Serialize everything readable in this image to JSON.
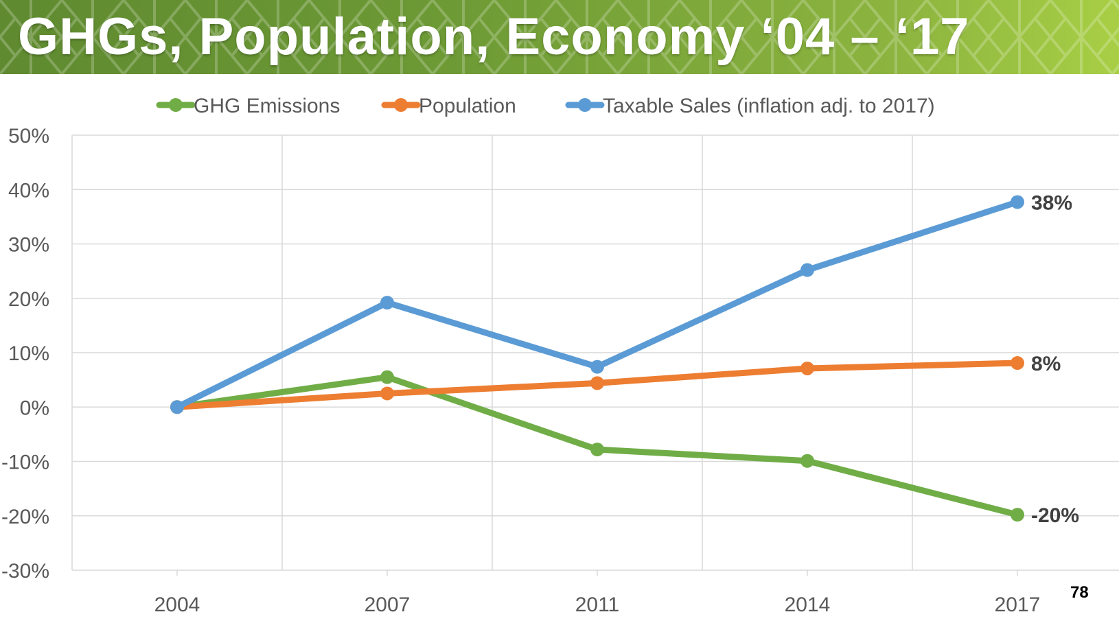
{
  "slide": {
    "title": "GHGs, Population, Economy ‘04 – ‘17",
    "number": "78"
  },
  "colors": {
    "banner_dark": "#5f8a30",
    "banner_light": "#a8cf45",
    "ghg": "#70ad47",
    "population": "#ed7d31",
    "sales": "#5b9bd5",
    "grid": "#d9d9d9",
    "tick_text": "#595959",
    "label_text": "#404040"
  },
  "chart_data": {
    "type": "line",
    "categories": [
      "2004",
      "2007",
      "2011",
      "2014",
      "2017"
    ],
    "ylim": [
      -0.3,
      0.5
    ],
    "yticks": [
      0.5,
      0.4,
      0.3,
      0.2,
      0.1,
      0,
      -0.1,
      -0.2,
      -0.3
    ],
    "ytick_labels": [
      "50%",
      "40%",
      "30%",
      "20%",
      "10%",
      "0%",
      "-10%",
      "-20%",
      "-30%"
    ],
    "grid": true,
    "legend_position": "top",
    "series": [
      {
        "name": "GHG Emissions",
        "color": "#70ad47",
        "values": [
          0,
          0.055,
          -0.078,
          -0.099,
          -0.198
        ],
        "end_label": "-20%"
      },
      {
        "name": "Population",
        "color": "#ed7d31",
        "values": [
          0,
          0.025,
          0.044,
          0.071,
          0.081
        ],
        "end_label": "8%"
      },
      {
        "name": "Taxable Sales (inflation adj. to 2017)",
        "color": "#5b9bd5",
        "values": [
          0,
          0.192,
          0.074,
          0.252,
          0.377
        ],
        "end_label": "38%"
      }
    ]
  }
}
